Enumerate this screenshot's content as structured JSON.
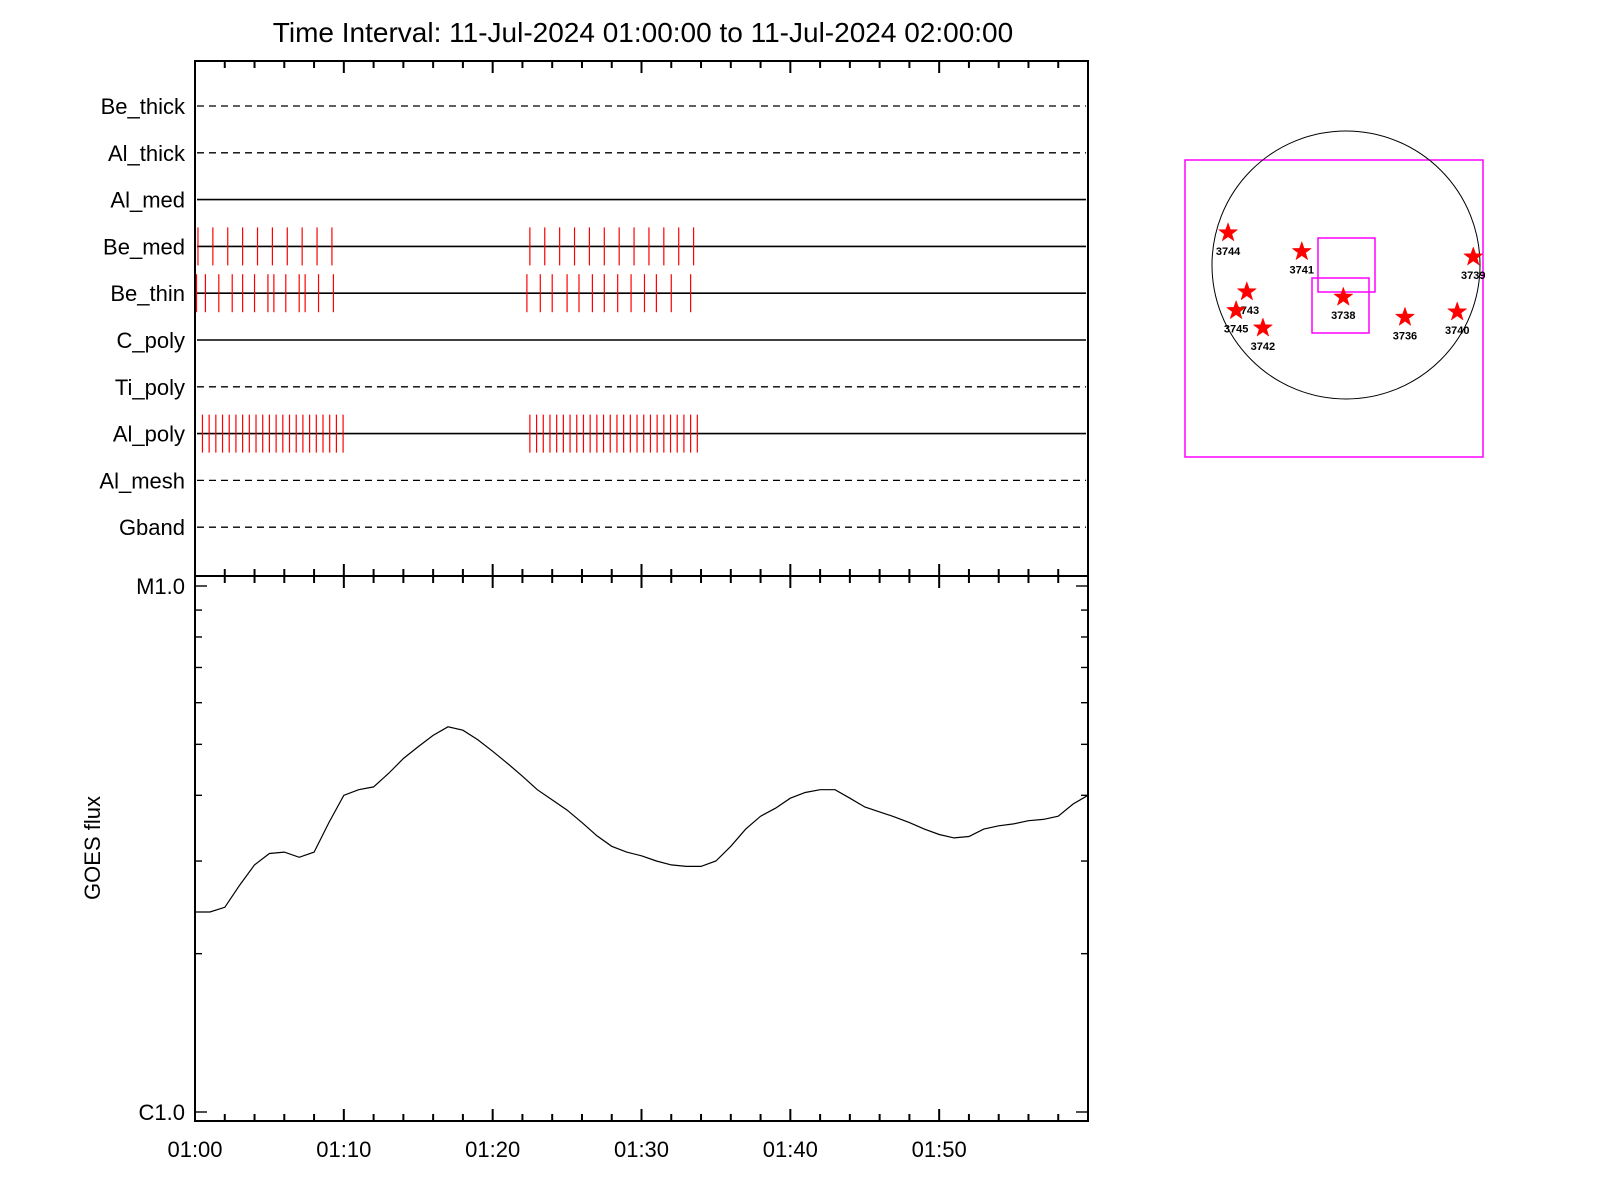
{
  "chart_data": [
    {
      "type": "event-raster",
      "title": "Time Interval: 11-Jul-2024 01:00:00 to 11-Jul-2024 02:00:00",
      "x_range_minutes": [
        0,
        60
      ],
      "rows": [
        {
          "name": "Be_thick",
          "style": "dashed",
          "events": []
        },
        {
          "name": "Al_thick",
          "style": "dashed",
          "events": []
        },
        {
          "name": "Al_med",
          "style": "solid",
          "events": []
        },
        {
          "name": "Be_med",
          "style": "solid",
          "events": [
            0.2,
            1.2,
            2.2,
            3.2,
            4.2,
            5.2,
            6.2,
            7.2,
            8.2,
            9.2,
            22.5,
            23.5,
            24.5,
            25.5,
            26.5,
            27.5,
            28.5,
            29.5,
            30.5,
            31.5,
            32.5,
            33.5
          ]
        },
        {
          "name": "Be_thin",
          "style": "solid",
          "events": [
            0.1,
            0.7,
            1.6,
            2.5,
            3.2,
            4.0,
            4.9,
            5.3,
            6.1,
            7.0,
            7.4,
            8.3,
            9.3,
            22.3,
            23.2,
            24.0,
            25.0,
            25.8,
            26.7,
            27.5,
            28.4,
            29.3,
            30.2,
            31.0,
            32.0,
            33.3
          ]
        },
        {
          "name": "C_poly",
          "style": "solid",
          "events": []
        },
        {
          "name": "Ti_poly",
          "style": "dashed",
          "events": []
        },
        {
          "name": "Al_poly",
          "style": "solid",
          "events": [
            0.5,
            0.95,
            1.4,
            1.85,
            2.3,
            2.75,
            3.2,
            3.65,
            4.1,
            4.55,
            5.0,
            5.45,
            5.9,
            6.35,
            6.8,
            7.25,
            7.7,
            8.15,
            8.6,
            9.05,
            9.5,
            9.95,
            22.5,
            22.95,
            23.4,
            23.85,
            24.3,
            24.75,
            25.2,
            25.65,
            26.1,
            26.55,
            27.0,
            27.45,
            27.9,
            28.35,
            28.8,
            29.25,
            29.7,
            30.15,
            30.6,
            31.05,
            31.5,
            31.95,
            32.4,
            32.85,
            33.3,
            33.75
          ]
        },
        {
          "name": "Al_mesh",
          "style": "dashed",
          "events": []
        },
        {
          "name": "Gband",
          "style": "dashed",
          "events": []
        }
      ]
    },
    {
      "type": "line",
      "ylabel": "GOES flux",
      "y_scale": "log",
      "y_ticks": [
        "M1.0",
        "C1.0"
      ],
      "y_range": [
        1e-06,
        1e-05
      ],
      "x_range_minutes": [
        0,
        60
      ],
      "x_ticks": [
        "01:00",
        "01:10",
        "01:20",
        "01:30",
        "01:40",
        "01:50"
      ],
      "x_tick_minutes": [
        0,
        10,
        20,
        30,
        40,
        50
      ],
      "series": [
        {
          "x": [
            0,
            1,
            2,
            3,
            4,
            5,
            6,
            7,
            8,
            9,
            10,
            11,
            12,
            13,
            14,
            15,
            16,
            17,
            18,
            19,
            20,
            21,
            22,
            23,
            24,
            25,
            26,
            27,
            28,
            29,
            30,
            31,
            32,
            33,
            34,
            35,
            36,
            37,
            38,
            39,
            40,
            41,
            42,
            43,
            44,
            45,
            46,
            47,
            48,
            49,
            50,
            51,
            52,
            53,
            54,
            55,
            56,
            57,
            58,
            59,
            60
          ],
          "y": [
            2.4e-06,
            2.4e-06,
            2.45e-06,
            2.7e-06,
            2.95e-06,
            3.1e-06,
            3.12e-06,
            3.05e-06,
            3.12e-06,
            3.55e-06,
            4e-06,
            4.1e-06,
            4.15e-06,
            4.4e-06,
            4.7e-06,
            4.95e-06,
            5.2e-06,
            5.4e-06,
            5.32e-06,
            5.1e-06,
            4.85e-06,
            4.6e-06,
            4.35e-06,
            4.1e-06,
            3.92e-06,
            3.75e-06,
            3.55e-06,
            3.35e-06,
            3.2e-06,
            3.12e-06,
            3.07e-06,
            3e-06,
            2.95e-06,
            2.93e-06,
            2.93e-06,
            3e-06,
            3.2e-06,
            3.45e-06,
            3.65e-06,
            3.78e-06,
            3.95e-06,
            4.05e-06,
            4.1e-06,
            4.1e-06,
            3.95e-06,
            3.8e-06,
            3.72e-06,
            3.64e-06,
            3.55e-06,
            3.45e-06,
            3.37e-06,
            3.32e-06,
            3.34e-06,
            3.45e-06,
            3.5e-06,
            3.53e-06,
            3.58e-06,
            3.6e-06,
            3.65e-06,
            3.85e-06,
            4e-06
          ]
        }
      ]
    },
    {
      "type": "scatter",
      "regions": [
        {
          "label": "3744",
          "x": -0.88,
          "y": 0.24
        },
        {
          "label": "3741",
          "x": -0.33,
          "y": 0.1
        },
        {
          "label": "3739",
          "x": 0.95,
          "y": 0.06
        },
        {
          "label": "3743",
          "x": -0.74,
          "y": -0.2
        },
        {
          "label": "3745",
          "x": -0.82,
          "y": -0.34
        },
        {
          "label": "3742",
          "x": -0.62,
          "y": -0.47
        },
        {
          "label": "3738",
          "x": -0.02,
          "y": -0.24
        },
        {
          "label": "3736",
          "x": 0.44,
          "y": -0.39
        },
        {
          "label": "3740",
          "x": 0.83,
          "y": -0.35
        }
      ]
    }
  ]
}
